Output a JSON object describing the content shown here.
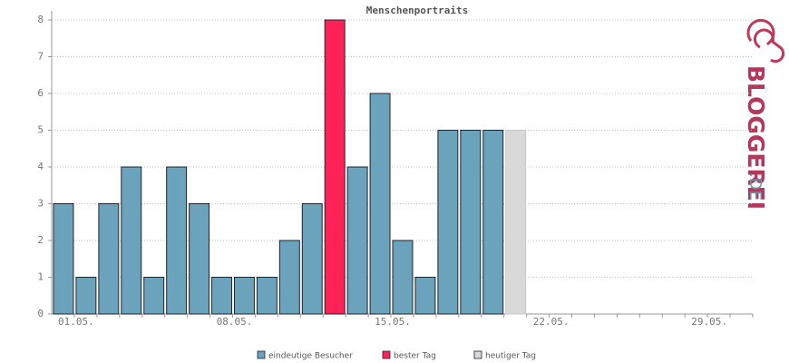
{
  "chart_data": {
    "type": "bar",
    "title": "Menschenportraits",
    "categories": [
      "01.05.",
      null,
      null,
      null,
      null,
      null,
      null,
      "08.05.",
      null,
      null,
      null,
      null,
      null,
      null,
      "15.05.",
      null,
      null,
      null,
      null,
      null,
      null,
      "22.05.",
      null,
      null,
      null,
      null,
      null,
      null,
      "29.05.",
      null,
      null
    ],
    "series": [
      {
        "name": "eindeutige Besucher",
        "color": "#6aa3bb",
        "values": [
          3,
          1,
          3,
          4,
          1,
          4,
          3,
          1,
          1,
          1,
          2,
          3,
          null,
          4,
          6,
          2,
          1,
          5,
          5,
          5,
          null,
          null,
          null,
          null,
          null,
          null,
          null,
          null,
          null,
          null,
          null
        ]
      },
      {
        "name": "bester Tag",
        "color": "#ff2257",
        "values": [
          null,
          null,
          null,
          null,
          null,
          null,
          null,
          null,
          null,
          null,
          null,
          null,
          8,
          null,
          null,
          null,
          null,
          null,
          null,
          null,
          null,
          null,
          null,
          null,
          null,
          null,
          null,
          null,
          null,
          null,
          null
        ]
      },
      {
        "name": "heutiger Tag",
        "color": "#d9d9d9",
        "values": [
          null,
          null,
          null,
          null,
          null,
          null,
          null,
          null,
          null,
          null,
          null,
          null,
          null,
          null,
          null,
          null,
          null,
          null,
          null,
          null,
          5,
          null,
          null,
          null,
          null,
          null,
          null,
          null,
          null,
          null,
          null
        ]
      }
    ],
    "ylim": [
      0,
      8
    ],
    "yticks": [
      0,
      1,
      2,
      3,
      4,
      5,
      6,
      7,
      8
    ],
    "grid": true
  },
  "brand": {
    "name": "BLOGGEREI",
    "domain": ".DE"
  }
}
